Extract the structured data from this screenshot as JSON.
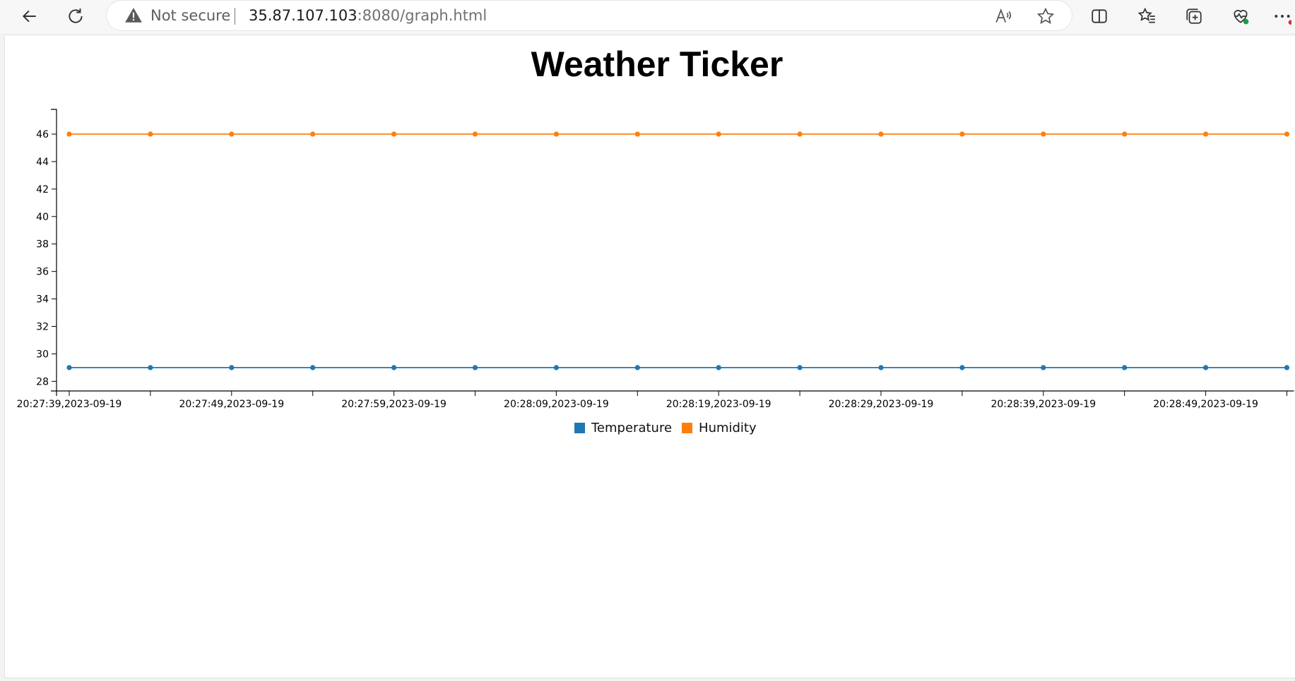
{
  "browser": {
    "security_label": "Not secure",
    "url_host": "35.87.107.103",
    "url_rest": ":8080/graph.html"
  },
  "page": {
    "title": "Weather Ticker"
  },
  "colors": {
    "temperature": "#1f77b4",
    "humidity": "#ff7f0e"
  },
  "chart_data": {
    "type": "line",
    "title": "Weather Ticker",
    "xlabel": "",
    "ylabel": "",
    "ylim": [
      27.3,
      47.8
    ],
    "y_ticks": [
      28,
      30,
      32,
      34,
      36,
      38,
      40,
      42,
      44,
      46
    ],
    "x_tick_labels": [
      "20:27:39,2023-09-19",
      "20:27:49,2023-09-19",
      "20:27:59,2023-09-19",
      "20:28:09,2023-09-19",
      "20:28:19,2023-09-19",
      "20:28:29,2023-09-19",
      "20:28:39,2023-09-19",
      "20:28:49,2023-09-19"
    ],
    "x": [
      "20:27:39",
      "20:27:44",
      "20:27:49",
      "20:27:54",
      "20:27:59",
      "20:28:04",
      "20:28:09",
      "20:28:14",
      "20:28:19",
      "20:28:24",
      "20:28:29",
      "20:28:34",
      "20:28:39",
      "20:28:44",
      "20:28:49",
      "20:28:54"
    ],
    "series": [
      {
        "name": "Temperature",
        "color": "#1f77b4",
        "values": [
          29,
          29,
          29,
          29,
          29,
          29,
          29,
          29,
          29,
          29,
          29,
          29,
          29,
          29,
          29,
          29
        ]
      },
      {
        "name": "Humidity",
        "color": "#ff7f0e",
        "values": [
          46,
          46,
          46,
          46,
          46,
          46,
          46,
          46,
          46,
          46,
          46,
          46,
          46,
          46,
          46,
          46
        ]
      }
    ],
    "grid": false,
    "legend_position": "bottom-center"
  }
}
